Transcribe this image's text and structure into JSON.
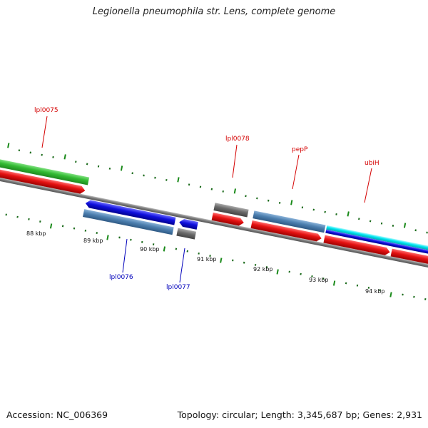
{
  "title": "Legionella pneumophila str. Lens, complete genome",
  "footer": {
    "accession": "Accession: NC_006369",
    "topology": "Topology: circular; Length: 3,345,687 bp; Genes: 2,931"
  },
  "colors": {
    "backbone": "#777777",
    "tick_major": "#1a8a1a",
    "tick_minor": "#1a6a1a",
    "forward_label": "#d40000",
    "reverse_label": "#0000bb",
    "cds_red": "#e01010",
    "gene_green": "#33bb33",
    "gene_steel": "#4d80b0",
    "gene_blue": "#1010dd",
    "gene_cyan": "#00e6f0",
    "gene_gray": "#6b6b6b"
  },
  "scale_labels": [
    "88 kbp",
    "89 kbp",
    "90 kbp",
    "91 kbp",
    "92 kbp",
    "93 kbp",
    "94 kbp"
  ],
  "genes_forward": [
    {
      "name": "lpl0075",
      "label_color": "#d40000"
    },
    {
      "name": "lpl0078",
      "label_color": "#d40000"
    },
    {
      "name": "pepP",
      "label_color": "#d40000"
    },
    {
      "name": "ubiH",
      "label_color": "#d40000"
    }
  ],
  "genes_reverse": [
    {
      "name": "lpl0076",
      "label_color": "#0000bb"
    },
    {
      "name": "lpl0077",
      "label_color": "#0000bb"
    }
  ]
}
